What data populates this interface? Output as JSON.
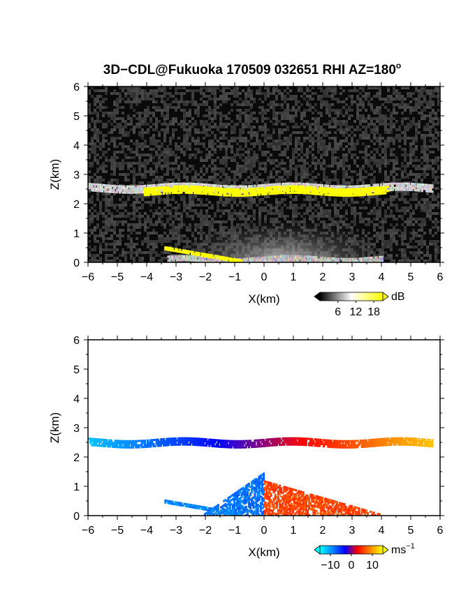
{
  "title": "3D−CDL@Fukuoka 170509 032651 RHI AZ=180",
  "title_degree": "o",
  "chart_data": [
    {
      "type": "heatmap",
      "name_hint": "reflectivity",
      "xlabel": "X(km)",
      "ylabel": "Z(km)",
      "xlim": [
        -6,
        6
      ],
      "ylim": [
        0,
        6
      ],
      "xticks": [
        "−6",
        "−5",
        "−4",
        "−3",
        "−2",
        "−1",
        "0",
        "1",
        "2",
        "3",
        "4",
        "5",
        "6"
      ],
      "yticks": [
        "0",
        "1",
        "2",
        "3",
        "4",
        "5",
        "6"
      ],
      "colorbar": {
        "label": "dB",
        "ticks": [
          "6",
          "12",
          "18"
        ],
        "range": [
          0,
          21
        ],
        "colors": [
          "#000000",
          "#ffffff",
          "#ffff00"
        ]
      },
      "features": [
        {
          "kind": "cloud-layer",
          "x_range": [
            -6.0,
            5.7
          ],
          "z": 2.55,
          "thickness": 0.25,
          "level": "medium-high"
        },
        {
          "kind": "strong-echo",
          "x_range": [
            -4.1,
            4.2
          ],
          "z": 2.45,
          "thickness": 0.25,
          "level": "above 18"
        },
        {
          "kind": "diffuse-cloud",
          "x_range": [
            -2.2,
            3.0
          ],
          "z": 1.0,
          "thickness": 1.0,
          "level": "low"
        },
        {
          "kind": "near-ground-echo",
          "x_range": [
            -3.3,
            4.0
          ],
          "z": 0.1,
          "level": "medium"
        },
        {
          "kind": "slant-echo",
          "x_range": [
            -3.4,
            -0.8
          ],
          "z_range": [
            0.5,
            0.05
          ],
          "level": "above 18"
        }
      ]
    },
    {
      "type": "heatmap",
      "name_hint": "doppler-velocity",
      "xlabel": "X(km)",
      "ylabel": "Z(km)",
      "xlim": [
        -6,
        6
      ],
      "ylim": [
        0,
        6
      ],
      "xticks": [
        "−6",
        "−5",
        "−4",
        "−3",
        "−2",
        "−1",
        "0",
        "1",
        "2",
        "3",
        "4",
        "5",
        "6"
      ],
      "yticks": [
        "0",
        "1",
        "2",
        "3",
        "4",
        "5",
        "6"
      ],
      "colorbar": {
        "label": "ms",
        "label_exponent": "−1",
        "ticks": [
          "−10",
          "0",
          "10"
        ],
        "range": [
          -15,
          15
        ],
        "colors": [
          "#00ffff",
          "#0088ff",
          "#0000ff",
          "#ff0000",
          "#ff8800",
          "#ffff00"
        ]
      },
      "features": [
        {
          "kind": "cloud-layer",
          "x_range": [
            -6.0,
            5.7
          ],
          "z": 2.5,
          "thickness": 0.25,
          "velocity_range": [
            -12,
            12
          ]
        },
        {
          "kind": "approaching-core",
          "x_range": [
            -2.1,
            0.0
          ],
          "z_range": [
            0.05,
            1.5
          ],
          "velocity": -8
        },
        {
          "kind": "receding-core",
          "x_range": [
            0.0,
            4.0
          ],
          "z_range": [
            0.05,
            1.2
          ],
          "velocity": 6
        },
        {
          "kind": "slant-echo",
          "x_range": [
            -3.4,
            -0.8
          ],
          "z_range": [
            0.5,
            0.05
          ],
          "velocity": -9
        }
      ]
    }
  ]
}
